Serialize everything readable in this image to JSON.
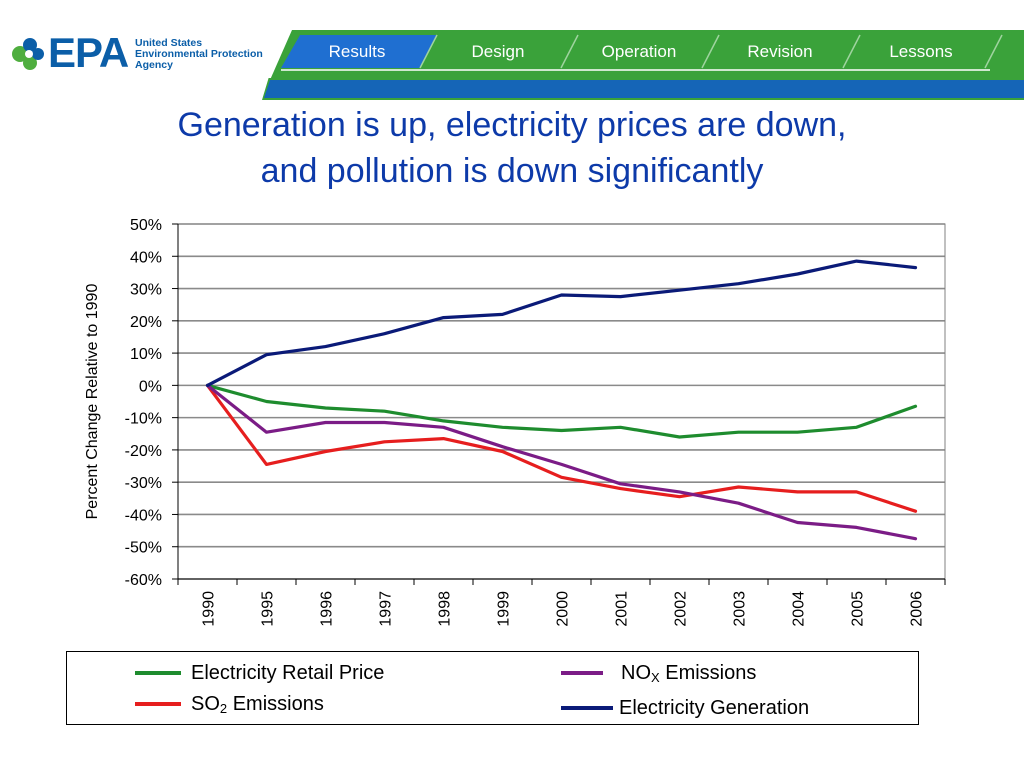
{
  "header": {
    "logo_text": "EPA",
    "logo_subtitle": [
      "United States",
      "Environmental Protection",
      "Agency"
    ],
    "nav_tabs": [
      "Results",
      "Design",
      "Operation",
      "Revision",
      "Lessons"
    ],
    "colors": {
      "green": "#3aa23a",
      "blue": "#1565b7",
      "active_tab": "#1f6fd1"
    }
  },
  "slide": {
    "title_line1": "Generation is up, electricity prices are down,",
    "title_line2": "and pollution is down significantly"
  },
  "chart_data": {
    "type": "line",
    "ylabel": "Percent Change Relative to 1990",
    "xlabel": "",
    "categories": [
      "1990",
      "1995",
      "1996",
      "1997",
      "1998",
      "1999",
      "2000",
      "2001",
      "2002",
      "2003",
      "2004",
      "2005",
      "2006"
    ],
    "ylim": [
      -60,
      50
    ],
    "yticks": [
      "50%",
      "40%",
      "30%",
      "20%",
      "10%",
      "0%",
      "-10%",
      "-20%",
      "-30%",
      "-40%",
      "-50%",
      "-60%"
    ],
    "ytick_values": [
      50,
      40,
      30,
      20,
      10,
      0,
      -10,
      -20,
      -30,
      -40,
      -50,
      -60
    ],
    "grid": "horizontal",
    "legend_position": "bottom",
    "series": [
      {
        "name": "Electricity Retail Price",
        "color": "#1e8c2e",
        "values": [
          0,
          -5,
          -7,
          -8,
          -11,
          -13,
          -14,
          -13,
          -16,
          -14.5,
          -14.5,
          -13,
          -6.5
        ]
      },
      {
        "name": "SO2 Emissions",
        "label_main": "SO",
        "label_sub": "2",
        "label_rest": " Emissions",
        "color": "#e61e1e",
        "values": [
          0,
          -24.5,
          -20.5,
          -17.5,
          -16.5,
          -20.5,
          -28.5,
          -32,
          -34.5,
          -31.5,
          -33,
          -33,
          -39
        ]
      },
      {
        "name": "NOX Emissions",
        "label_main": "NO",
        "label_sub": "X",
        "label_rest": " Emissions",
        "color": "#7b1c86",
        "values": [
          0,
          -14.5,
          -11.5,
          -11.5,
          -13,
          -19,
          -24.5,
          -30.5,
          -33,
          -36.5,
          -42.5,
          -44,
          -47.5
        ]
      },
      {
        "name": "Electricity Generation",
        "color": "#0a1a78",
        "values": [
          0,
          9.5,
          12,
          16,
          21,
          22,
          28,
          27.5,
          29.5,
          31.5,
          34.5,
          38.5,
          36.5
        ]
      }
    ]
  }
}
